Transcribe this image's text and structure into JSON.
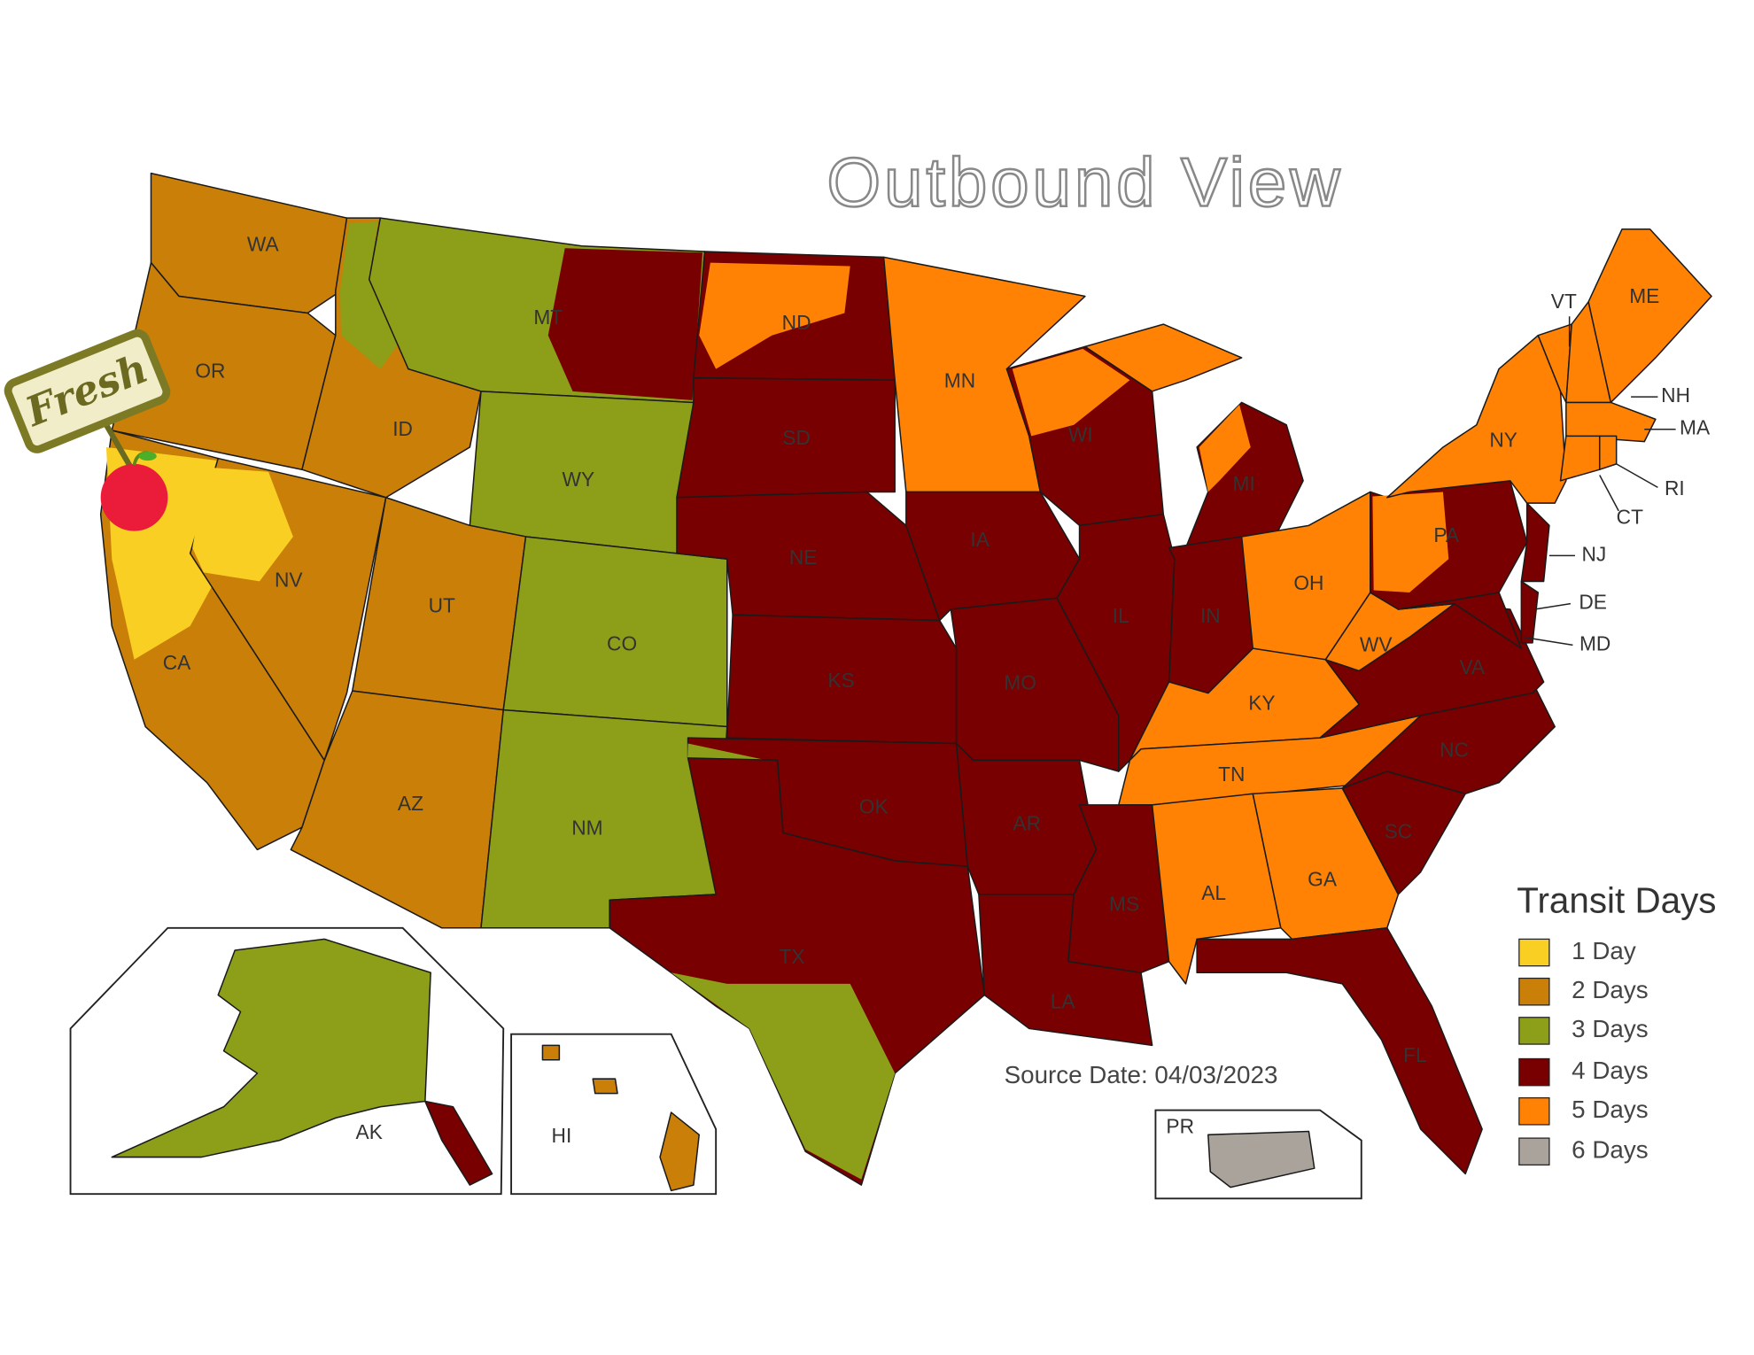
{
  "title": "Outbound View",
  "state_labels": [
    "WA",
    "OR",
    "CA",
    "NV",
    "ID",
    "MT",
    "WY",
    "UT",
    "AZ",
    "CO",
    "NM",
    "ND",
    "SD",
    "NE",
    "KS",
    "OK",
    "TX",
    "MN",
    "IA",
    "MO",
    "AR",
    "LA",
    "WI",
    "IL",
    "MI",
    "IN",
    "OH",
    "KY",
    "TN",
    "MS",
    "AL",
    "GA",
    "FL",
    "SC",
    "NC",
    "VA",
    "WV",
    "PA",
    "NY",
    "VT",
    "ME",
    "NH",
    "MA",
    "RI",
    "CT",
    "NJ",
    "DE",
    "MD",
    "AK",
    "HI",
    "PR"
  ],
  "legend": {
    "title": "Transit Days",
    "items": [
      "1 Day",
      "2 Days",
      "3 Days",
      "4 Days",
      "5 Days",
      "6 Days"
    ]
  },
  "source": "Source Date: 04/03/2023",
  "badge": "Fresh"
}
